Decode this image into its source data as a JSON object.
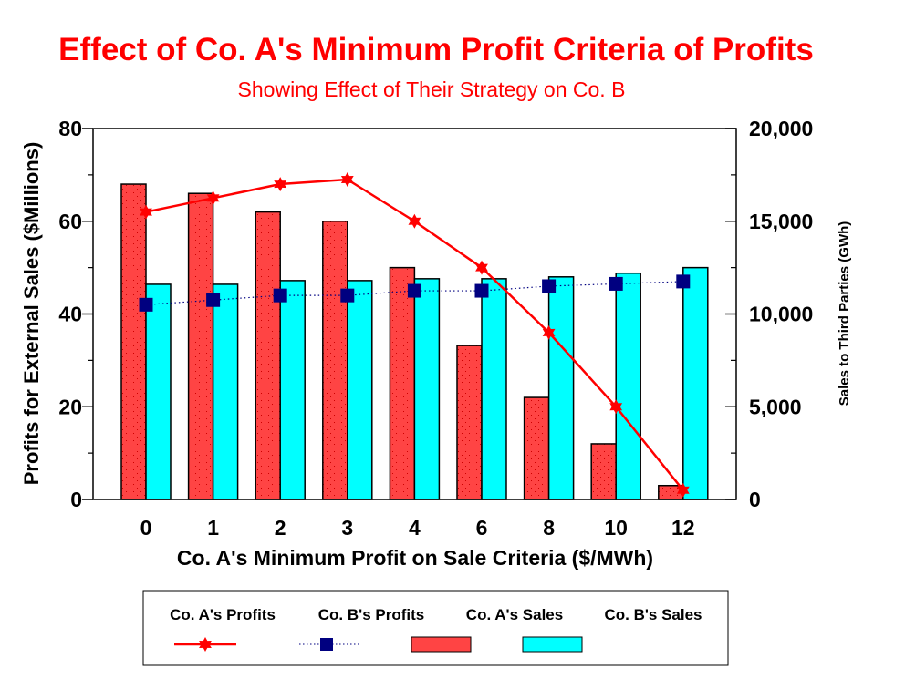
{
  "chart_data": {
    "type": "bar",
    "title": "Effect of Co. A's Minimum Profit Criteria of Profits",
    "subtitle": "Showing Effect of Their Strategy on Co. B",
    "xlabel": "Co. A's Minimum Profit on Sale Criteria ($/MWh)",
    "ylabel": "Profits for External Sales ($Millions)",
    "y2label": "Sales to Third Parties (GWh)",
    "categories": [
      "0",
      "1",
      "2",
      "3",
      "4",
      "6",
      "8",
      "10",
      "12"
    ],
    "ylim": [
      0,
      80
    ],
    "yticks": [
      0,
      20,
      40,
      60,
      80
    ],
    "ytick_labels": [
      "0",
      "20",
      "40",
      "60",
      "80"
    ],
    "y2lim": [
      0,
      20000
    ],
    "y2ticks": [
      0,
      5000,
      10000,
      15000,
      20000
    ],
    "y2tick_labels": [
      "0",
      "5,000",
      "10,000",
      "15,000",
      "20,000"
    ],
    "grid": false,
    "legend_position": "bottom",
    "series": [
      {
        "name": "Co. A's Profits",
        "type": "line",
        "axis": "left",
        "color": "#ff0000",
        "marker": "star",
        "line_style": "solid",
        "values": [
          62,
          65,
          68,
          69,
          60,
          50,
          36,
          20,
          2
        ]
      },
      {
        "name": "Co. B's Profits",
        "type": "line",
        "axis": "left",
        "color": "#000080",
        "marker": "square",
        "line_style": "dotted",
        "values": [
          42,
          43,
          44,
          44,
          45,
          45,
          46,
          46.5,
          47
        ]
      },
      {
        "name": "Co. A's Sales",
        "type": "bar",
        "axis": "right",
        "color": "#ff4444",
        "values": [
          17000,
          16500,
          15500,
          15000,
          12500,
          8300,
          5500,
          3000,
          750
        ]
      },
      {
        "name": "Co. B's Sales",
        "type": "bar",
        "axis": "right",
        "color": "#00ffff",
        "values": [
          11600,
          11600,
          11800,
          11800,
          11900,
          11900,
          12000,
          12200,
          12500
        ]
      }
    ]
  }
}
